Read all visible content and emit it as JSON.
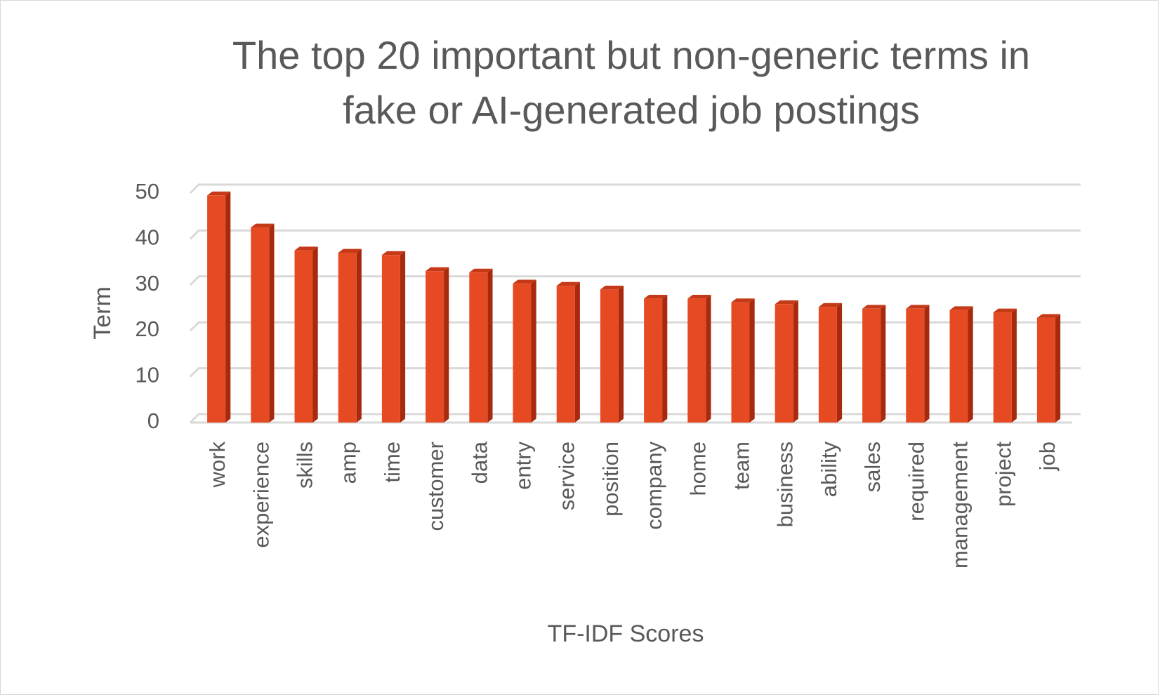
{
  "chart_data": {
    "type": "bar",
    "title_line1": "The top 20 important but non-generic terms in",
    "title_line2": "fake or AI-generated job postings",
    "xlabel": "TF-IDF Scores",
    "ylabel": "Term",
    "ylim": [
      0,
      50
    ],
    "yticks": [
      "0",
      "10",
      "20",
      "30",
      "40",
      "50"
    ],
    "grid": true,
    "legend": "none",
    "categories": [
      "work",
      "experience",
      "skills",
      "amp",
      "time",
      "customer",
      "data",
      "entry",
      "service",
      "position",
      "company",
      "home",
      "team",
      "business",
      "ability",
      "sales",
      "required",
      "management",
      "project",
      "job"
    ],
    "values": [
      49.5,
      42.5,
      37.5,
      37.0,
      36.5,
      33.0,
      32.7,
      30.3,
      29.8,
      29.0,
      27.0,
      27.0,
      26.2,
      25.8,
      25.2,
      24.8,
      24.8,
      24.5,
      24.0,
      22.8
    ],
    "colors": {
      "bar_front": "#E64A23",
      "bar_side": "#A82A0E",
      "bar_top": "#C43A19",
      "grid": "#d9d9d9",
      "text": "#595959"
    }
  }
}
